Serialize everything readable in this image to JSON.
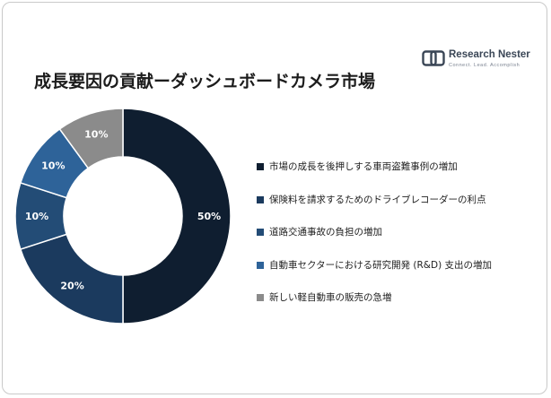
{
  "header": {
    "title": "成長要因の貢献ーダッシュボードカメラ市場"
  },
  "logo": {
    "name": "Research Nester",
    "tagline": "Connect. Lead. Accomplish"
  },
  "chart_data": {
    "type": "pie",
    "donut": true,
    "series": [
      {
        "name": "市場の成長を後押しする車両盗難事例の増加",
        "value": 50,
        "label": "50%",
        "color": "#0f1e30"
      },
      {
        "name": "保険料を請求するためのドライブレコーダーの利点",
        "value": 20,
        "label": "20%",
        "color": "#1b3a5e"
      },
      {
        "name": "道路交通事故の負担の増加",
        "value": 10,
        "label": "10%",
        "color": "#234c76"
      },
      {
        "name": "自動車セクターにおける研究開発 (R&D) 支出の増加",
        "value": 10,
        "label": "10%",
        "color": "#2e6399"
      },
      {
        "name": "新しい軽自動車の販売の急増",
        "value": 10,
        "label": "10%",
        "color": "#8b8b8b"
      }
    ],
    "start_angle_deg": 0,
    "direction": "clockwise",
    "legend_position": "right"
  }
}
